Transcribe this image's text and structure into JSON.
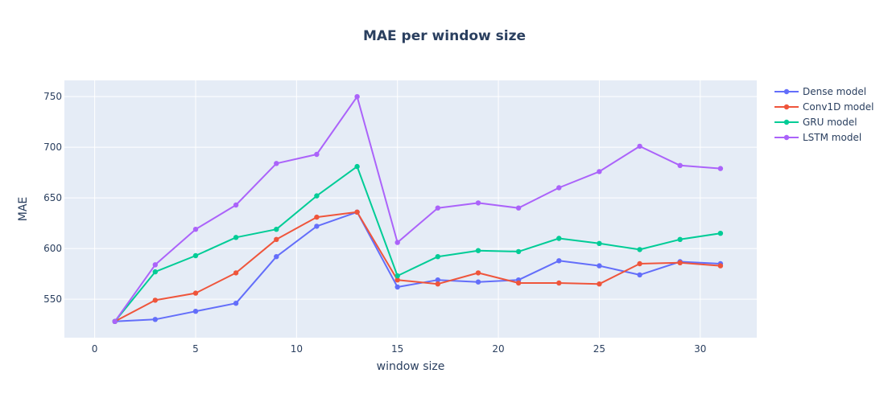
{
  "chart_data": {
    "type": "line",
    "title": "MAE per window size",
    "xlabel": "window size",
    "ylabel": "MAE",
    "x": [
      1,
      3,
      5,
      7,
      9,
      11,
      13,
      15,
      17,
      19,
      21,
      23,
      25,
      27,
      29,
      31
    ],
    "xlim": [
      -1.5,
      32.8
    ],
    "ylim": [
      512,
      766
    ],
    "xticks": [
      0,
      5,
      10,
      15,
      20,
      25,
      30
    ],
    "yticks": [
      550,
      600,
      650,
      700,
      750
    ],
    "grid": true,
    "legend_position": "top-right",
    "background_color": "#e5ecf6",
    "series": [
      {
        "name": "Dense model",
        "color": "#636efa",
        "values": [
          528,
          530,
          538,
          546,
          592,
          622,
          636,
          562,
          569,
          567,
          569,
          588,
          583,
          574,
          587,
          585
        ]
      },
      {
        "name": "Conv1D model",
        "color": "#ef553b",
        "values": [
          528,
          549,
          556,
          576,
          609,
          631,
          636,
          569,
          565,
          576,
          566,
          566,
          565,
          585,
          586,
          583
        ]
      },
      {
        "name": "GRU model",
        "color": "#00cc96",
        "values": [
          528,
          577,
          593,
          611,
          619,
          652,
          681,
          573,
          592,
          598,
          597,
          610,
          605,
          599,
          609,
          615
        ]
      },
      {
        "name": "LSTM model",
        "color": "#ab63fa",
        "values": [
          528,
          584,
          619,
          643,
          684,
          693,
          750,
          606,
          640,
          645,
          640,
          660,
          676,
          701,
          682,
          679
        ]
      }
    ]
  }
}
